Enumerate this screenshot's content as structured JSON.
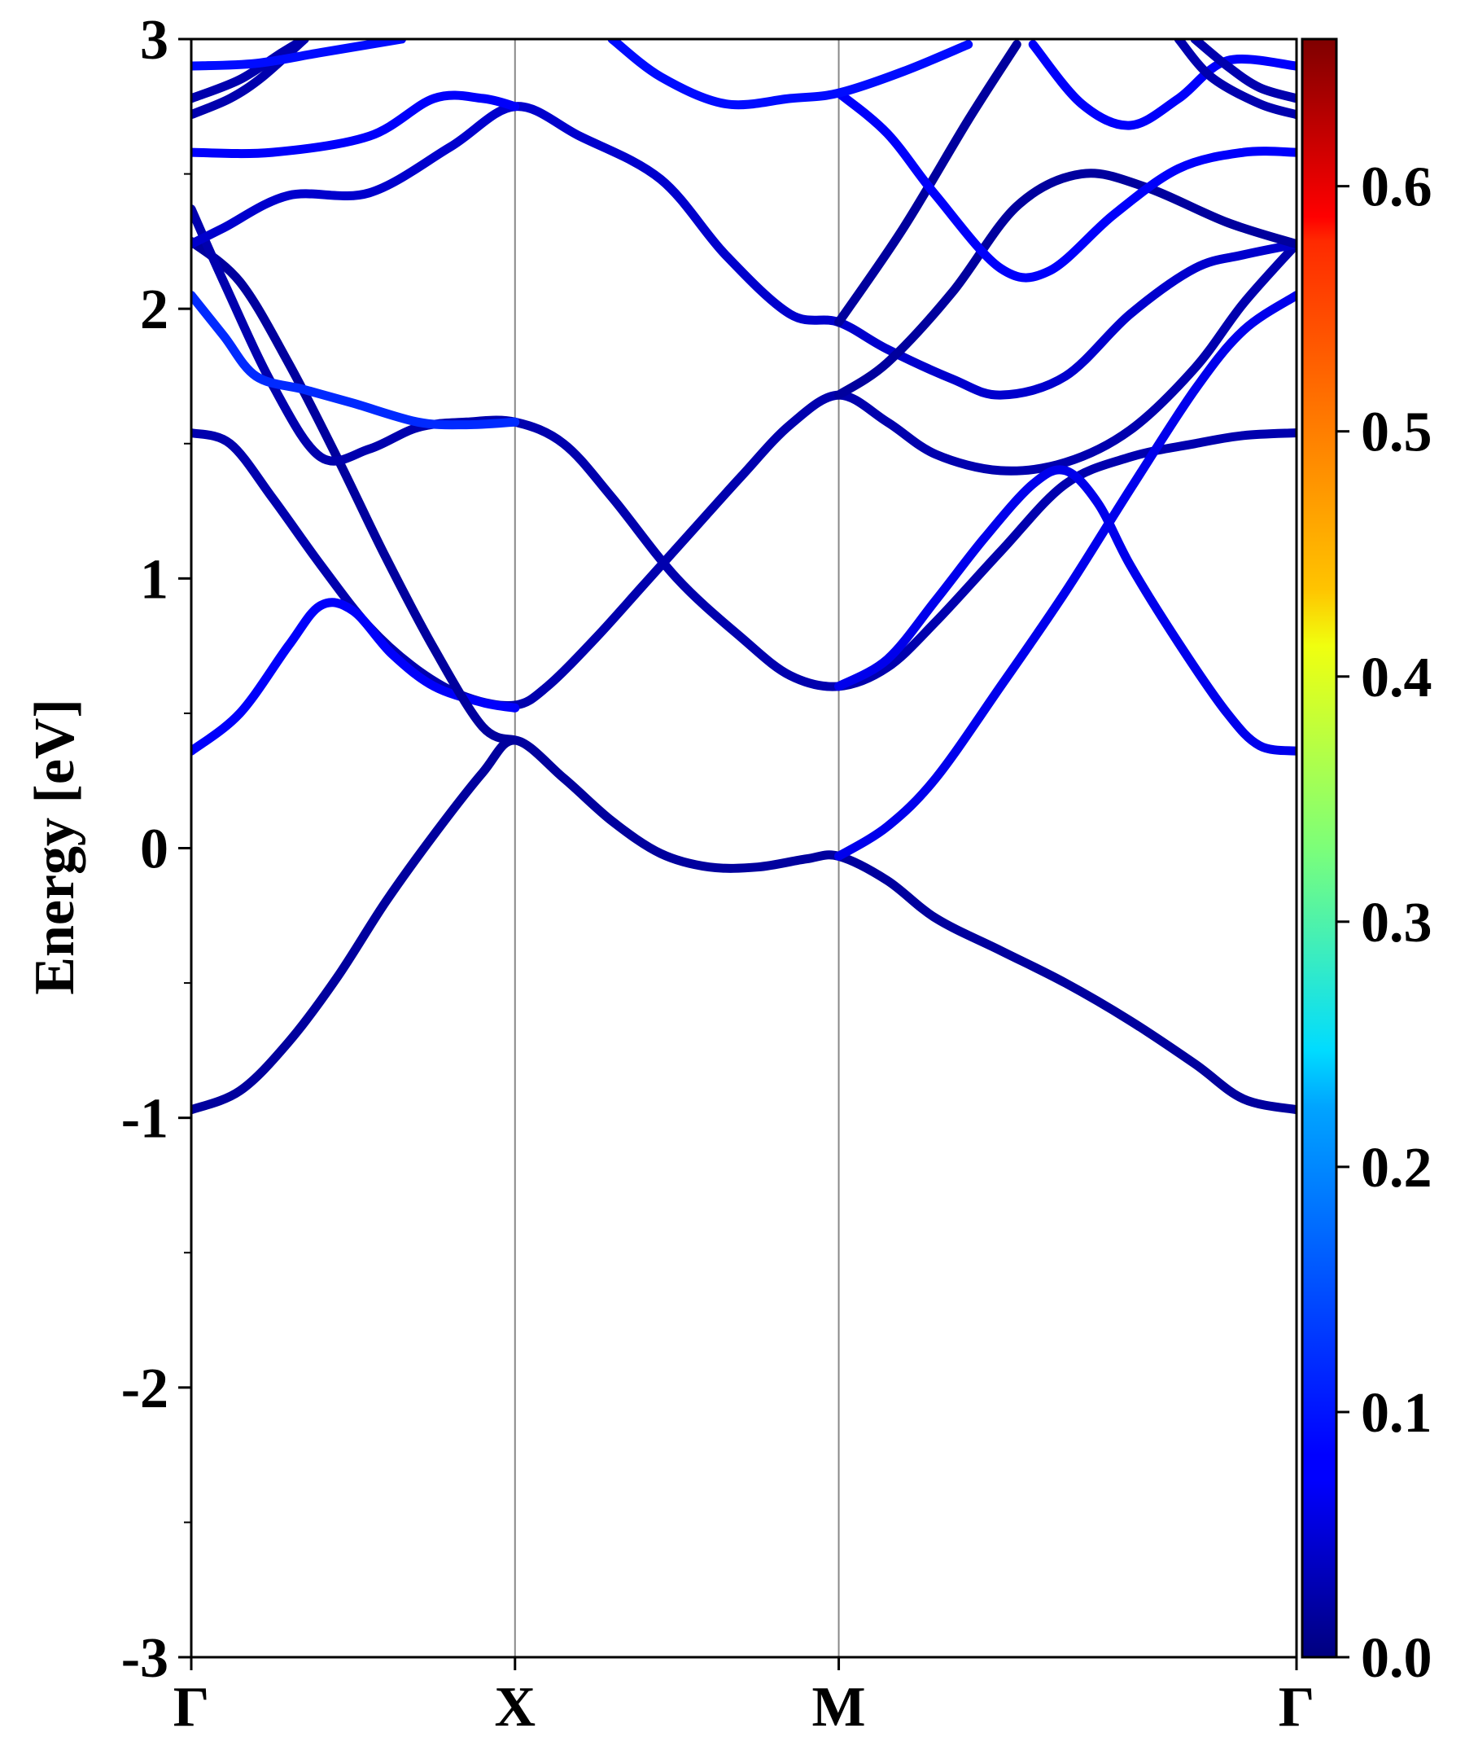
{
  "chart_data": {
    "type": "line",
    "ylabel": "Energy [eV]",
    "xlabel": "",
    "ylim": [
      -3,
      3
    ],
    "yticks": [
      "3",
      "2",
      "1",
      "0",
      "-1",
      "-2",
      "-3"
    ],
    "ytick_values": [
      3,
      2,
      1,
      0,
      -1,
      -2,
      -3
    ],
    "xticks": [
      "Γ",
      "X",
      "M",
      "Γ"
    ],
    "xtick_positions": [
      0,
      1,
      2,
      3.414
    ],
    "vertical_lines_at": [
      1,
      2
    ],
    "grid": false,
    "colorbar": {
      "colormap": "jet",
      "range": [
        0,
        0.66
      ],
      "tick_labels": [
        "0.0",
        "0.1",
        "0.2",
        "0.3",
        "0.4",
        "0.5",
        "0.6"
      ],
      "tick_values": [
        0.0,
        0.1,
        0.2,
        0.3,
        0.4,
        0.5,
        0.6
      ]
    },
    "series": [
      {
        "weight": 0.02,
        "points": [
          [
            0,
            -0.97
          ],
          [
            0.15,
            -0.9
          ],
          [
            0.3,
            -0.72
          ],
          [
            0.45,
            -0.48
          ],
          [
            0.6,
            -0.2
          ],
          [
            0.75,
            0.05
          ],
          [
            0.9,
            0.28
          ],
          [
            1,
            0.4
          ],
          [
            1.15,
            0.26
          ],
          [
            1.3,
            0.1
          ],
          [
            1.45,
            -0.02
          ],
          [
            1.6,
            -0.07
          ],
          [
            1.75,
            -0.07
          ],
          [
            1.9,
            -0.04
          ],
          [
            2,
            -0.03
          ],
          [
            2.15,
            -0.12
          ],
          [
            2.3,
            -0.26
          ],
          [
            2.5,
            -0.38
          ],
          [
            2.7,
            -0.5
          ],
          [
            2.9,
            -0.64
          ],
          [
            3.1,
            -0.8
          ],
          [
            3.25,
            -0.93
          ],
          [
            3.414,
            -0.97
          ]
        ]
      },
      {
        "weight": 0.03,
        "points": [
          [
            0,
            1.54
          ],
          [
            0.12,
            1.5
          ],
          [
            0.25,
            1.3
          ],
          [
            0.4,
            1.05
          ],
          [
            0.55,
            0.82
          ],
          [
            0.7,
            0.66
          ],
          [
            0.85,
            0.56
          ],
          [
            1,
            0.53
          ],
          [
            1.1,
            0.6
          ],
          [
            1.25,
            0.78
          ],
          [
            1.4,
            0.98
          ],
          [
            1.55,
            1.18
          ],
          [
            1.7,
            1.38
          ],
          [
            1.85,
            1.57
          ],
          [
            2,
            1.68
          ],
          [
            2.15,
            1.58
          ],
          [
            2.3,
            1.46
          ],
          [
            2.5,
            1.4
          ],
          [
            2.7,
            1.43
          ],
          [
            2.9,
            1.55
          ],
          [
            3.1,
            1.78
          ],
          [
            3.25,
            2.02
          ],
          [
            3.414,
            2.24
          ]
        ]
      },
      {
        "weight": 0.08,
        "points": [
          [
            0,
            0.36
          ],
          [
            0.15,
            0.5
          ],
          [
            0.3,
            0.75
          ],
          [
            0.4,
            0.9
          ],
          [
            0.5,
            0.88
          ],
          [
            0.62,
            0.72
          ],
          [
            0.75,
            0.6
          ],
          [
            0.9,
            0.54
          ],
          [
            1,
            0.52
          ]
        ]
      },
      {
        "weight": 0.02,
        "points": [
          [
            0,
            2.25
          ],
          [
            0.15,
            2.1
          ],
          [
            0.3,
            1.8
          ],
          [
            0.45,
            1.45
          ],
          [
            0.6,
            1.08
          ],
          [
            0.75,
            0.74
          ],
          [
            0.9,
            0.45
          ],
          [
            1,
            0.4
          ]
        ]
      },
      {
        "weight": 0.03,
        "points": [
          [
            0,
            2.37
          ],
          [
            0.1,
            2.1
          ],
          [
            0.25,
            1.72
          ],
          [
            0.4,
            1.45
          ],
          [
            0.55,
            1.48
          ],
          [
            0.7,
            1.56
          ],
          [
            0.85,
            1.58
          ],
          [
            1,
            1.58
          ],
          [
            1.15,
            1.5
          ],
          [
            1.3,
            1.3
          ],
          [
            1.5,
            1.0
          ],
          [
            1.7,
            0.78
          ],
          [
            1.85,
            0.64
          ],
          [
            2,
            0.6
          ],
          [
            2.15,
            0.67
          ],
          [
            2.3,
            0.84
          ],
          [
            2.5,
            1.1
          ],
          [
            2.7,
            1.35
          ],
          [
            2.9,
            1.45
          ],
          [
            3.1,
            1.5
          ],
          [
            3.25,
            1.53
          ],
          [
            3.414,
            1.54
          ]
        ]
      },
      {
        "weight": 0.07,
        "points": [
          [
            2,
            0.6
          ],
          [
            2.15,
            0.7
          ],
          [
            2.3,
            0.92
          ],
          [
            2.45,
            1.15
          ],
          [
            2.6,
            1.35
          ],
          [
            2.7,
            1.4
          ],
          [
            2.8,
            1.28
          ],
          [
            2.9,
            1.05
          ],
          [
            3.05,
            0.76
          ],
          [
            3.2,
            0.5
          ],
          [
            3.3,
            0.38
          ],
          [
            3.414,
            0.36
          ]
        ]
      },
      {
        "weight": 0.07,
        "points": [
          [
            2,
            -0.03
          ],
          [
            2.15,
            0.08
          ],
          [
            2.3,
            0.26
          ],
          [
            2.5,
            0.6
          ],
          [
            2.7,
            0.95
          ],
          [
            2.9,
            1.33
          ],
          [
            3.1,
            1.7
          ],
          [
            3.25,
            1.92
          ],
          [
            3.414,
            2.05
          ]
        ]
      },
      {
        "weight": 0.11,
        "points": [
          [
            0,
            2.05
          ],
          [
            0.1,
            1.9
          ],
          [
            0.2,
            1.75
          ],
          [
            0.35,
            1.7
          ],
          [
            0.5,
            1.65
          ],
          [
            0.7,
            1.58
          ],
          [
            0.85,
            1.57
          ],
          [
            1,
            1.58
          ]
        ]
      },
      {
        "weight": 0.05,
        "points": [
          [
            0,
            2.24
          ],
          [
            0.1,
            2.3
          ],
          [
            0.3,
            2.42
          ],
          [
            0.55,
            2.43
          ],
          [
            0.8,
            2.6
          ],
          [
            1,
            2.75
          ],
          [
            1.2,
            2.64
          ],
          [
            1.45,
            2.48
          ],
          [
            1.65,
            2.2
          ],
          [
            1.85,
            1.98
          ],
          [
            2,
            1.95
          ],
          [
            2.15,
            1.85
          ],
          [
            2.35,
            1.74
          ],
          [
            2.5,
            1.68
          ],
          [
            2.7,
            1.75
          ],
          [
            2.9,
            1.98
          ],
          [
            3.1,
            2.15
          ],
          [
            3.25,
            2.2
          ],
          [
            3.414,
            2.24
          ]
        ]
      },
      {
        "weight": 0.02,
        "points": [
          [
            2,
            1.95
          ],
          [
            2.2,
            2.3
          ],
          [
            2.4,
            2.7
          ],
          [
            2.55,
            2.98
          ]
        ]
      },
      {
        "weight": 0.02,
        "points": [
          [
            2,
            1.68
          ],
          [
            2.15,
            1.8
          ],
          [
            2.35,
            2.06
          ],
          [
            2.55,
            2.38
          ],
          [
            2.75,
            2.5
          ],
          [
            2.95,
            2.45
          ],
          [
            3.2,
            2.32
          ],
          [
            3.414,
            2.24
          ]
        ]
      },
      {
        "weight": 0.08,
        "points": [
          [
            0,
            2.58
          ],
          [
            0.25,
            2.58
          ],
          [
            0.55,
            2.64
          ],
          [
            0.75,
            2.78
          ],
          [
            0.9,
            2.78
          ],
          [
            1,
            2.75
          ]
        ]
      },
      {
        "weight": 0.08,
        "points": [
          [
            2,
            2.8
          ],
          [
            2.15,
            2.65
          ],
          [
            2.3,
            2.42
          ],
          [
            2.5,
            2.15
          ],
          [
            2.65,
            2.14
          ],
          [
            2.85,
            2.35
          ],
          [
            3.05,
            2.52
          ],
          [
            3.25,
            2.58
          ],
          [
            3.414,
            2.58
          ]
        ]
      },
      {
        "weight": 0.09,
        "points": [
          [
            1.3,
            3.0
          ],
          [
            1.45,
            2.86
          ],
          [
            1.65,
            2.76
          ],
          [
            1.85,
            2.78
          ],
          [
            2,
            2.8
          ],
          [
            2.2,
            2.88
          ],
          [
            2.4,
            2.98
          ]
        ]
      },
      {
        "weight": 0.08,
        "points": [
          [
            2.6,
            2.98
          ],
          [
            2.75,
            2.76
          ],
          [
            2.9,
            2.68
          ],
          [
            3.05,
            2.78
          ],
          [
            3.2,
            2.92
          ],
          [
            3.414,
            2.9
          ]
        ]
      },
      {
        "weight": 0.03,
        "points": [
          [
            0,
            2.72
          ],
          [
            0.12,
            2.78
          ],
          [
            0.22,
            2.86
          ],
          [
            0.35,
            3.0
          ]
        ]
      },
      {
        "weight": 0.03,
        "points": [
          [
            0,
            2.78
          ],
          [
            0.15,
            2.85
          ],
          [
            0.28,
            2.95
          ],
          [
            0.35,
            3.0
          ]
        ]
      },
      {
        "weight": 0.09,
        "points": [
          [
            0,
            2.9
          ],
          [
            0.2,
            2.91
          ],
          [
            0.4,
            2.95
          ],
          [
            0.65,
            3.0
          ]
        ]
      },
      {
        "weight": 0.03,
        "points": [
          [
            3.414,
            2.72
          ],
          [
            3.3,
            2.76
          ],
          [
            3.15,
            2.86
          ],
          [
            3.05,
            3.0
          ]
        ]
      },
      {
        "weight": 0.03,
        "points": [
          [
            3.414,
            2.78
          ],
          [
            3.3,
            2.82
          ],
          [
            3.2,
            2.9
          ],
          [
            3.1,
            3.0
          ]
        ]
      }
    ]
  }
}
